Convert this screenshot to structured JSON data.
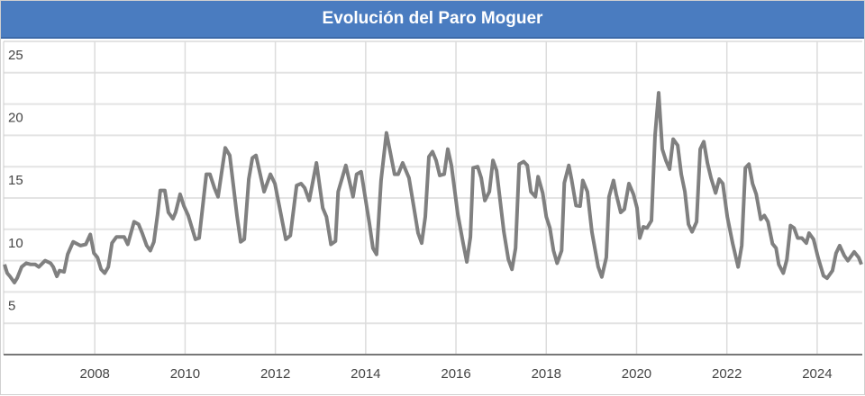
{
  "chart_data": {
    "type": "line",
    "title": "Evolución del Paro Moguer",
    "xlabel": "",
    "ylabel": "",
    "ylim": [
      0,
      25
    ],
    "xlim": [
      2006.0,
      2025.0
    ],
    "y_ticks": [
      "25",
      "20",
      "15",
      "10",
      "5"
    ],
    "x_ticks": [
      "2008",
      "2010",
      "2012",
      "2014",
      "2016",
      "2018",
      "2020",
      "2022",
      "2024"
    ],
    "grid": true,
    "legend": "none",
    "line_color": "#808080",
    "series": [
      {
        "points": [
          [
            2006.0,
            7.2
          ],
          [
            2006.06,
            6.5
          ],
          [
            2006.12,
            6.25
          ],
          [
            2006.22,
            5.75
          ],
          [
            2006.28,
            6.1
          ],
          [
            2006.38,
            7.0
          ],
          [
            2006.48,
            7.3
          ],
          [
            2006.58,
            7.2
          ],
          [
            2006.68,
            7.2
          ],
          [
            2006.76,
            7.0
          ],
          [
            2006.9,
            7.5
          ],
          [
            2007.02,
            7.3
          ],
          [
            2007.08,
            7.0
          ],
          [
            2007.16,
            6.25
          ],
          [
            2007.22,
            6.7
          ],
          [
            2007.32,
            6.6
          ],
          [
            2007.4,
            8.0
          ],
          [
            2007.52,
            9.0
          ],
          [
            2007.68,
            8.7
          ],
          [
            2007.8,
            8.8
          ],
          [
            2007.9,
            9.6
          ],
          [
            2007.98,
            8.1
          ],
          [
            2008.06,
            7.75
          ],
          [
            2008.14,
            6.8
          ],
          [
            2008.22,
            6.5
          ],
          [
            2008.3,
            7.0
          ],
          [
            2008.38,
            8.9
          ],
          [
            2008.48,
            9.4
          ],
          [
            2008.65,
            9.4
          ],
          [
            2008.73,
            8.8
          ],
          [
            2008.87,
            10.6
          ],
          [
            2008.97,
            10.4
          ],
          [
            2009.05,
            9.7
          ],
          [
            2009.15,
            8.7
          ],
          [
            2009.23,
            8.3
          ],
          [
            2009.31,
            9.0
          ],
          [
            2009.39,
            11.2
          ],
          [
            2009.45,
            13.1
          ],
          [
            2009.55,
            13.1
          ],
          [
            2009.63,
            11.35
          ],
          [
            2009.73,
            10.85
          ],
          [
            2009.79,
            11.35
          ],
          [
            2009.89,
            12.8
          ],
          [
            2009.97,
            11.9
          ],
          [
            2010.07,
            11.1
          ],
          [
            2010.23,
            9.2
          ],
          [
            2010.31,
            9.3
          ],
          [
            2010.47,
            14.4
          ],
          [
            2010.55,
            14.4
          ],
          [
            2010.65,
            13.3
          ],
          [
            2010.73,
            12.6
          ],
          [
            2010.89,
            16.5
          ],
          [
            2010.99,
            15.9
          ],
          [
            2011.15,
            11.1
          ],
          [
            2011.23,
            9.0
          ],
          [
            2011.31,
            9.2
          ],
          [
            2011.41,
            14.0
          ],
          [
            2011.49,
            15.7
          ],
          [
            2011.57,
            15.9
          ],
          [
            2011.75,
            13.0
          ],
          [
            2011.89,
            14.4
          ],
          [
            2011.99,
            13.65
          ],
          [
            2012.23,
            9.2
          ],
          [
            2012.33,
            9.5
          ],
          [
            2012.47,
            13.5
          ],
          [
            2012.57,
            13.65
          ],
          [
            2012.65,
            13.3
          ],
          [
            2012.75,
            12.3
          ],
          [
            2012.91,
            15.3
          ],
          [
            2013.05,
            11.7
          ],
          [
            2013.13,
            11.0
          ],
          [
            2013.23,
            8.8
          ],
          [
            2013.33,
            9.05
          ],
          [
            2013.39,
            13.0
          ],
          [
            2013.56,
            15.1
          ],
          [
            2013.72,
            12.6
          ],
          [
            2013.8,
            14.4
          ],
          [
            2013.9,
            14.6
          ],
          [
            2014.08,
            10.5
          ],
          [
            2014.16,
            8.5
          ],
          [
            2014.24,
            8.0
          ],
          [
            2014.34,
            13.9
          ],
          [
            2014.46,
            17.7
          ],
          [
            2014.64,
            14.4
          ],
          [
            2014.72,
            14.4
          ],
          [
            2014.82,
            15.3
          ],
          [
            2014.96,
            14.1
          ],
          [
            2015.06,
            11.9
          ],
          [
            2015.16,
            9.7
          ],
          [
            2015.24,
            8.9
          ],
          [
            2015.32,
            11.0
          ],
          [
            2015.4,
            15.8
          ],
          [
            2015.48,
            16.2
          ],
          [
            2015.56,
            15.5
          ],
          [
            2015.64,
            14.3
          ],
          [
            2015.74,
            14.4
          ],
          [
            2015.82,
            16.4
          ],
          [
            2015.9,
            15.1
          ],
          [
            2016.04,
            11.2
          ],
          [
            2016.16,
            8.85
          ],
          [
            2016.24,
            7.4
          ],
          [
            2016.32,
            9.4
          ],
          [
            2016.38,
            14.9
          ],
          [
            2016.48,
            15.0
          ],
          [
            2016.56,
            14.1
          ],
          [
            2016.64,
            12.3
          ],
          [
            2016.74,
            13.0
          ],
          [
            2016.82,
            15.5
          ],
          [
            2016.9,
            14.7
          ],
          [
            2017.06,
            9.8
          ],
          [
            2017.16,
            7.6
          ],
          [
            2017.24,
            6.8
          ],
          [
            2017.32,
            8.5
          ],
          [
            2017.4,
            15.2
          ],
          [
            2017.5,
            15.4
          ],
          [
            2017.58,
            15.1
          ],
          [
            2017.66,
            13.0
          ],
          [
            2017.76,
            12.6
          ],
          [
            2017.82,
            14.2
          ],
          [
            2017.92,
            12.9
          ],
          [
            2018.0,
            11.0
          ],
          [
            2018.08,
            10.1
          ],
          [
            2018.16,
            8.3
          ],
          [
            2018.24,
            7.3
          ],
          [
            2018.34,
            8.3
          ],
          [
            2018.4,
            13.7
          ],
          [
            2018.5,
            15.1
          ],
          [
            2018.56,
            14.0
          ],
          [
            2018.66,
            11.9
          ],
          [
            2018.75,
            11.85
          ],
          [
            2018.81,
            13.9
          ],
          [
            2018.91,
            13.0
          ],
          [
            2019.01,
            9.8
          ],
          [
            2019.15,
            7.0
          ],
          [
            2019.23,
            6.2
          ],
          [
            2019.33,
            7.75
          ],
          [
            2019.39,
            12.6
          ],
          [
            2019.49,
            13.9
          ],
          [
            2019.55,
            12.8
          ],
          [
            2019.65,
            11.35
          ],
          [
            2019.73,
            11.6
          ],
          [
            2019.83,
            13.65
          ],
          [
            2019.93,
            12.8
          ],
          [
            2020.01,
            11.7
          ],
          [
            2020.07,
            9.3
          ],
          [
            2020.15,
            10.2
          ],
          [
            2020.23,
            10.1
          ],
          [
            2020.33,
            10.7
          ],
          [
            2020.41,
            17.5
          ],
          [
            2020.49,
            20.9
          ],
          [
            2020.57,
            16.4
          ],
          [
            2020.65,
            15.5
          ],
          [
            2020.73,
            14.8
          ],
          [
            2020.81,
            17.2
          ],
          [
            2020.91,
            16.7
          ],
          [
            2020.99,
            14.4
          ],
          [
            2021.07,
            13.0
          ],
          [
            2021.15,
            10.4
          ],
          [
            2021.23,
            9.8
          ],
          [
            2021.33,
            10.6
          ],
          [
            2021.41,
            16.4
          ],
          [
            2021.49,
            17.0
          ],
          [
            2021.57,
            15.3
          ],
          [
            2021.65,
            14.1
          ],
          [
            2021.75,
            12.9
          ],
          [
            2021.83,
            14.0
          ],
          [
            2021.91,
            13.65
          ],
          [
            2022.01,
            11.0
          ],
          [
            2022.13,
            8.85
          ],
          [
            2022.25,
            7.0
          ],
          [
            2022.33,
            8.7
          ],
          [
            2022.41,
            14.9
          ],
          [
            2022.49,
            15.2
          ],
          [
            2022.57,
            13.65
          ],
          [
            2022.65,
            12.8
          ],
          [
            2022.75,
            10.8
          ],
          [
            2022.83,
            11.1
          ],
          [
            2022.91,
            10.6
          ],
          [
            2023.01,
            8.85
          ],
          [
            2023.09,
            8.5
          ],
          [
            2023.15,
            7.2
          ],
          [
            2023.25,
            6.5
          ],
          [
            2023.33,
            7.6
          ],
          [
            2023.41,
            10.3
          ],
          [
            2023.49,
            10.1
          ],
          [
            2023.57,
            9.3
          ],
          [
            2023.66,
            9.3
          ],
          [
            2023.76,
            8.9
          ],
          [
            2023.82,
            9.7
          ],
          [
            2023.92,
            9.2
          ],
          [
            2024.02,
            7.75
          ],
          [
            2024.14,
            6.3
          ],
          [
            2024.22,
            6.1
          ],
          [
            2024.34,
            6.7
          ],
          [
            2024.42,
            8.1
          ],
          [
            2024.5,
            8.7
          ],
          [
            2024.6,
            7.9
          ],
          [
            2024.68,
            7.5
          ],
          [
            2024.82,
            8.2
          ],
          [
            2024.92,
            7.75
          ],
          [
            2024.98,
            7.2
          ]
        ]
      }
    ]
  }
}
